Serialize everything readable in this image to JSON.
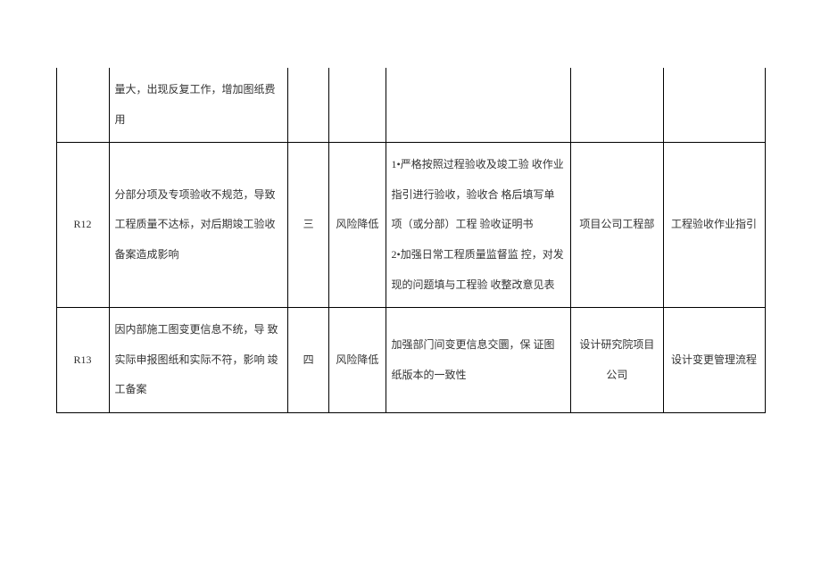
{
  "table": {
    "rows": [
      {
        "id": "",
        "desc": "量大，出现反复工作，增加图纸费用",
        "level": "",
        "strategy": "",
        "measures": "",
        "dept": "",
        "ref": ""
      },
      {
        "id": "R12",
        "desc": "分部分项及专项验收不规范，导致 工程质量不达标，对后期竣工验收 备案造成影响",
        "level": "三",
        "strategy": "风险降低",
        "measures": "1•严格按照过程验收及竣工验 收作业指引进行验收，验收合 格后填写单项（或分部）工程 验收证明书\n2•加强日常工程质量监督监 控，对发现的问题填与工程验 收整改意见表",
        "dept": "项目公司工程部",
        "ref": "工程验收作业指引"
      },
      {
        "id": "R13",
        "desc": "因内部施工图变更信息不统，导 致实际申报图纸和实际不符，影响 竣工备案",
        "level": "四",
        "strategy": "风险降低",
        "measures": "加强部门间变更信息交圜，保 证图纸版本的一致性",
        "dept": "设计研究院项目公司",
        "ref": "设计变更管理流程"
      }
    ],
    "colors": {
      "border": "#000000",
      "text": "#333333",
      "background": "#ffffff"
    },
    "fontsize": 12
  }
}
